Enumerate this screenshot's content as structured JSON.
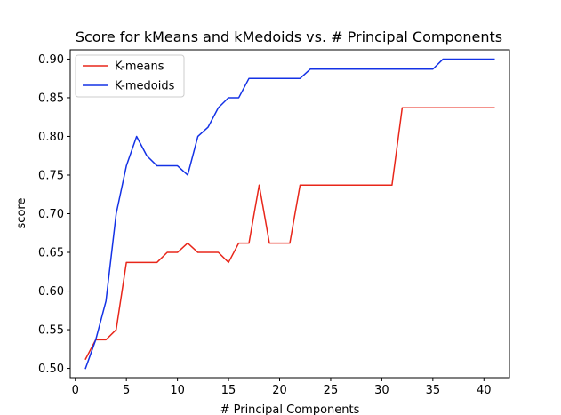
{
  "chart_data": {
    "type": "line",
    "title": "Score for kMeans and kMedoids vs. # Principal Components",
    "xlabel": "# Principal Components",
    "ylabel": "score",
    "xlim": [
      -0.5,
      42.5
    ],
    "ylim": [
      0.488,
      0.912
    ],
    "xticks": [
      0,
      5,
      10,
      15,
      20,
      25,
      30,
      35,
      40
    ],
    "xtick_labels": [
      "0",
      "5",
      "10",
      "15",
      "20",
      "25",
      "30",
      "35",
      "40"
    ],
    "yticks": [
      0.5,
      0.55,
      0.6,
      0.65,
      0.7,
      0.75,
      0.8,
      0.85,
      0.9
    ],
    "ytick_labels": [
      "0.50",
      "0.55",
      "0.60",
      "0.65",
      "0.70",
      "0.75",
      "0.80",
      "0.85",
      "0.90"
    ],
    "grid": false,
    "legend": "top-left",
    "x": [
      1,
      2,
      3,
      4,
      5,
      6,
      7,
      8,
      9,
      10,
      11,
      12,
      13,
      14,
      15,
      16,
      17,
      18,
      19,
      20,
      21,
      22,
      23,
      24,
      25,
      26,
      27,
      28,
      29,
      30,
      31,
      32,
      33,
      34,
      35,
      36,
      37,
      38,
      39,
      40,
      41
    ],
    "series": [
      {
        "name": "K-means",
        "color": "#e8261a",
        "values": [
          0.512,
          0.537,
          0.537,
          0.55,
          0.637,
          0.637,
          0.637,
          0.637,
          0.65,
          0.65,
          0.662,
          0.65,
          0.65,
          0.65,
          0.637,
          0.662,
          0.662,
          0.737,
          0.662,
          0.662,
          0.662,
          0.737,
          0.737,
          0.737,
          0.737,
          0.737,
          0.737,
          0.737,
          0.737,
          0.737,
          0.737,
          0.837,
          0.837,
          0.837,
          0.837,
          0.837,
          0.837,
          0.837,
          0.837,
          0.837,
          0.837
        ]
      },
      {
        "name": "K-medoids",
        "color": "#1432e6",
        "values": [
          0.5,
          0.537,
          0.587,
          0.7,
          0.762,
          0.8,
          0.775,
          0.762,
          0.762,
          0.762,
          0.75,
          0.8,
          0.812,
          0.837,
          0.85,
          0.85,
          0.875,
          0.875,
          0.875,
          0.875,
          0.875,
          0.875,
          0.887,
          0.887,
          0.887,
          0.887,
          0.887,
          0.887,
          0.887,
          0.887,
          0.887,
          0.887,
          0.887,
          0.887,
          0.887,
          0.9,
          0.9,
          0.9,
          0.9,
          0.9,
          0.9
        ]
      }
    ]
  }
}
